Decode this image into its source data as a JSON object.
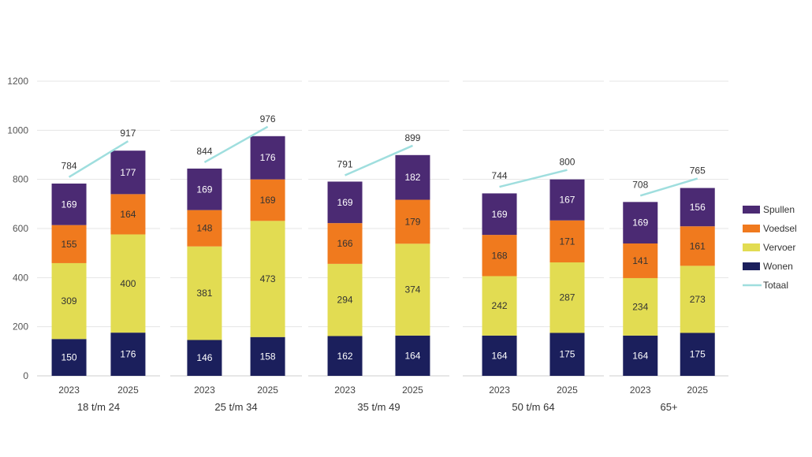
{
  "chart_data": {
    "type": "bar",
    "stacked": true,
    "title": "",
    "xlabel": "",
    "ylabel": "",
    "ylim": [
      0,
      1200
    ],
    "yticks": [
      0,
      200,
      400,
      600,
      800,
      1000,
      1200
    ],
    "grid": true,
    "legend_position": "right",
    "groups": [
      {
        "label": "18 t/m 24",
        "years": [
          "2023",
          "2025"
        ],
        "totals": [
          784,
          917
        ],
        "stacks": {
          "Wonen": [
            150,
            176
          ],
          "Vervoer": [
            309,
            400
          ],
          "Voedsel": [
            155,
            164
          ],
          "Spullen": [
            169,
            177
          ]
        }
      },
      {
        "label": "25 t/m 34",
        "years": [
          "2023",
          "2025"
        ],
        "totals": [
          844,
          976
        ],
        "stacks": {
          "Wonen": [
            146,
            158
          ],
          "Vervoer": [
            381,
            473
          ],
          "Voedsel": [
            148,
            169
          ],
          "Spullen": [
            169,
            176
          ]
        }
      },
      {
        "label": "35 t/m 49",
        "years": [
          "2023",
          "2025"
        ],
        "totals": [
          791,
          899
        ],
        "stacks": {
          "Wonen": [
            162,
            164
          ],
          "Vervoer": [
            294,
            374
          ],
          "Voedsel": [
            166,
            179
          ],
          "Spullen": [
            169,
            182
          ]
        }
      },
      {
        "label": "50 t/m 64",
        "years": [
          "2023",
          "2025"
        ],
        "totals": [
          744,
          800
        ],
        "stacks": {
          "Wonen": [
            164,
            175
          ],
          "Vervoer": [
            242,
            287
          ],
          "Voedsel": [
            168,
            171
          ],
          "Spullen": [
            169,
            167
          ]
        }
      },
      {
        "label": "65+",
        "years": [
          "2023",
          "2025"
        ],
        "totals": [
          708,
          765
        ],
        "stacks": {
          "Wonen": [
            164,
            175
          ],
          "Vervoer": [
            234,
            273
          ],
          "Voedsel": [
            141,
            161
          ],
          "Spullen": [
            169,
            156
          ]
        }
      }
    ],
    "stack_order": [
      "Wonen",
      "Vervoer",
      "Voedsel",
      "Spullen"
    ],
    "series_colors": {
      "Wonen": "#1b1f5c",
      "Vervoer": "#e2dc52",
      "Voedsel": "#f07a1e",
      "Spullen": "#4b2a73",
      "Totaal": "#9fdede"
    },
    "label_colors": {
      "Wonen": "#ffffff",
      "Vervoer": "#333333",
      "Voedsel": "#333333",
      "Spullen": "#ffffff"
    },
    "legend": [
      "Spullen",
      "Voedsel",
      "Vervoer",
      "Wonen",
      "Totaal"
    ]
  }
}
